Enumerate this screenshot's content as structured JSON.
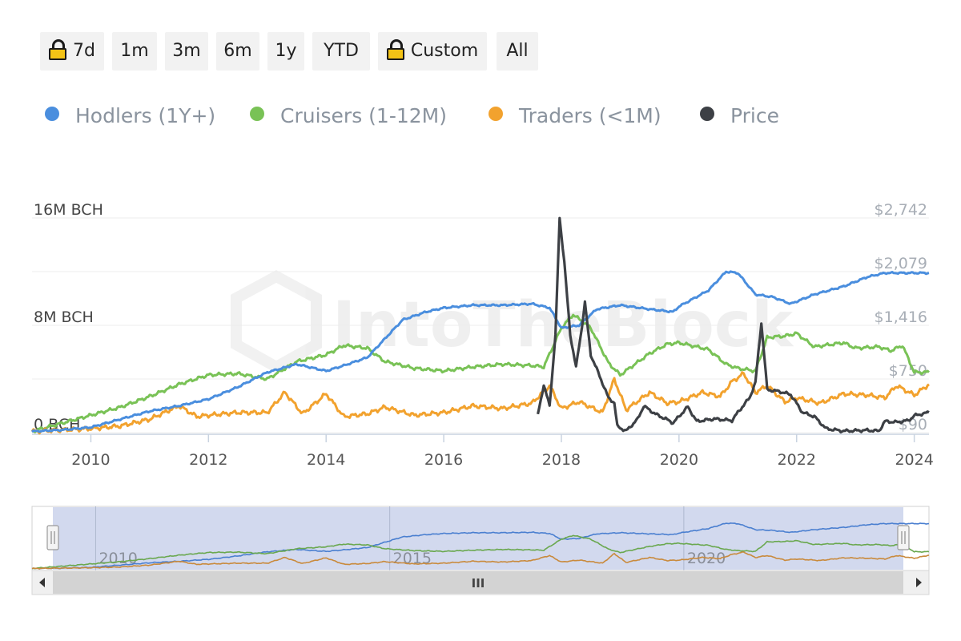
{
  "range_buttons": [
    {
      "label": "7d",
      "locked": true
    },
    {
      "label": "1m",
      "locked": false
    },
    {
      "label": "3m",
      "locked": false
    },
    {
      "label": "6m",
      "locked": false
    },
    {
      "label": "1y",
      "locked": false
    },
    {
      "label": "YTD",
      "locked": false
    },
    {
      "label": "Custom",
      "locked": true
    },
    {
      "label": "All",
      "locked": false
    }
  ],
  "legend": [
    {
      "label": "Hodlers (1Y+)",
      "color": "#4a8ede"
    },
    {
      "label": "Cruisers (1-12M)",
      "color": "#79c256"
    },
    {
      "label": "Traders (<1M)",
      "color": "#f2a22e"
    },
    {
      "label": "Price",
      "color": "#3d4045"
    }
  ],
  "watermark": "IntoTheBlock",
  "navigator": {
    "labels": [
      "2010",
      "2015",
      "2020"
    ],
    "scrollbar_grip": "III"
  },
  "chart_data": {
    "type": "line",
    "x_range": [
      2009.0,
      2024.25
    ],
    "x_ticks": [
      "2010",
      "2012",
      "2014",
      "2016",
      "2018",
      "2020",
      "2022",
      "2024"
    ],
    "y_left": {
      "ticks": [
        "0 BCH",
        "8M BCH",
        "16M BCH"
      ],
      "range_million": [
        0,
        16
      ]
    },
    "y_right": {
      "ticks": [
        "$90",
        "$750",
        "$1,416",
        "$2,079",
        "$2,742"
      ],
      "range": [
        90,
        2742
      ]
    },
    "grid": true,
    "legend_position": "top-left",
    "series": [
      {
        "name": "Hodlers (1Y+)",
        "axis": "left",
        "unit": "M BCH",
        "points": [
          [
            2009.0,
            0.1
          ],
          [
            2009.5,
            0.2
          ],
          [
            2010.0,
            0.4
          ],
          [
            2010.5,
            1.0
          ],
          [
            2011.0,
            1.6
          ],
          [
            2011.5,
            2.0
          ],
          [
            2012.0,
            2.5
          ],
          [
            2012.5,
            3.4
          ],
          [
            2013.0,
            4.5
          ],
          [
            2013.5,
            5.1
          ],
          [
            2014.0,
            4.6
          ],
          [
            2014.3,
            5.0
          ],
          [
            2014.7,
            5.6
          ],
          [
            2015.0,
            7.0
          ],
          [
            2015.3,
            8.4
          ],
          [
            2015.7,
            9.0
          ],
          [
            2016.0,
            9.3
          ],
          [
            2016.5,
            9.5
          ],
          [
            2017.0,
            9.5
          ],
          [
            2017.5,
            9.6
          ],
          [
            2017.8,
            9.3
          ],
          [
            2018.0,
            7.8
          ],
          [
            2018.3,
            8.0
          ],
          [
            2018.6,
            9.2
          ],
          [
            2019.0,
            9.5
          ],
          [
            2019.5,
            9.2
          ],
          [
            2019.9,
            9.0
          ],
          [
            2020.0,
            9.4
          ],
          [
            2020.5,
            10.6
          ],
          [
            2020.8,
            12.0
          ],
          [
            2021.0,
            11.9
          ],
          [
            2021.3,
            10.3
          ],
          [
            2021.6,
            10.1
          ],
          [
            2021.9,
            9.6
          ],
          [
            2022.3,
            10.3
          ],
          [
            2022.8,
            10.9
          ],
          [
            2023.2,
            11.6
          ],
          [
            2023.5,
            11.9
          ],
          [
            2023.8,
            11.9
          ],
          [
            2024.25,
            11.9
          ]
        ]
      },
      {
        "name": "Cruisers (1-12M)",
        "axis": "left",
        "unit": "M BCH",
        "points": [
          [
            2009.0,
            0.1
          ],
          [
            2009.5,
            0.7
          ],
          [
            2010.0,
            1.3
          ],
          [
            2010.5,
            1.9
          ],
          [
            2011.0,
            2.7
          ],
          [
            2011.5,
            3.6
          ],
          [
            2012.0,
            4.3
          ],
          [
            2012.5,
            4.4
          ],
          [
            2013.0,
            4.0
          ],
          [
            2013.5,
            5.3
          ],
          [
            2014.0,
            5.8
          ],
          [
            2014.3,
            6.5
          ],
          [
            2014.7,
            6.3
          ],
          [
            2015.0,
            5.3
          ],
          [
            2015.5,
            4.8
          ],
          [
            2016.0,
            4.6
          ],
          [
            2016.5,
            4.9
          ],
          [
            2017.0,
            5.1
          ],
          [
            2017.5,
            5.0
          ],
          [
            2017.7,
            4.9
          ],
          [
            2018.0,
            7.8
          ],
          [
            2018.2,
            8.8
          ],
          [
            2018.5,
            7.8
          ],
          [
            2018.8,
            5.2
          ],
          [
            2019.0,
            4.3
          ],
          [
            2019.5,
            5.9
          ],
          [
            2019.8,
            6.6
          ],
          [
            2020.0,
            6.7
          ],
          [
            2020.5,
            6.2
          ],
          [
            2020.8,
            5.1
          ],
          [
            2021.0,
            4.8
          ],
          [
            2021.3,
            4.6
          ],
          [
            2021.5,
            7.1
          ],
          [
            2021.8,
            7.2
          ],
          [
            2022.0,
            7.4
          ],
          [
            2022.3,
            6.4
          ],
          [
            2022.8,
            6.7
          ],
          [
            2023.0,
            6.3
          ],
          [
            2023.4,
            6.4
          ],
          [
            2023.6,
            6.1
          ],
          [
            2023.8,
            6.5
          ],
          [
            2024.0,
            4.5
          ],
          [
            2024.25,
            4.5
          ]
        ]
      },
      {
        "name": "Traders (<1M)",
        "axis": "left",
        "unit": "M BCH",
        "points": [
          [
            2009.0,
            0.1
          ],
          [
            2009.5,
            0.2
          ],
          [
            2010.0,
            0.3
          ],
          [
            2010.5,
            0.5
          ],
          [
            2011.0,
            1.0
          ],
          [
            2011.5,
            2.0
          ],
          [
            2011.8,
            1.2
          ],
          [
            2012.0,
            1.3
          ],
          [
            2012.5,
            1.5
          ],
          [
            2013.0,
            1.5
          ],
          [
            2013.3,
            3.0
          ],
          [
            2013.6,
            1.4
          ],
          [
            2014.0,
            2.9
          ],
          [
            2014.3,
            1.2
          ],
          [
            2014.7,
            1.4
          ],
          [
            2015.0,
            1.9
          ],
          [
            2015.5,
            1.3
          ],
          [
            2016.0,
            1.5
          ],
          [
            2016.5,
            2.0
          ],
          [
            2017.0,
            1.8
          ],
          [
            2017.5,
            2.2
          ],
          [
            2017.8,
            3.5
          ],
          [
            2018.0,
            1.8
          ],
          [
            2018.3,
            2.3
          ],
          [
            2018.7,
            1.5
          ],
          [
            2018.9,
            4.0
          ],
          [
            2019.1,
            1.7
          ],
          [
            2019.5,
            3.0
          ],
          [
            2019.8,
            2.2
          ],
          [
            2020.0,
            2.3
          ],
          [
            2020.4,
            3.0
          ],
          [
            2020.7,
            2.7
          ],
          [
            2020.9,
            3.8
          ],
          [
            2021.1,
            4.4
          ],
          [
            2021.3,
            3.0
          ],
          [
            2021.5,
            3.5
          ],
          [
            2021.8,
            2.3
          ],
          [
            2022.0,
            2.6
          ],
          [
            2022.4,
            2.2
          ],
          [
            2022.8,
            2.9
          ],
          [
            2023.2,
            2.8
          ],
          [
            2023.5,
            2.6
          ],
          [
            2023.7,
            3.5
          ],
          [
            2024.0,
            2.8
          ],
          [
            2024.25,
            3.6
          ]
        ]
      },
      {
        "name": "Price",
        "axis": "right",
        "unit": "USD",
        "points": [
          [
            2017.6,
            310
          ],
          [
            2017.7,
            680
          ],
          [
            2017.8,
            420
          ],
          [
            2017.9,
            1300
          ],
          [
            2017.97,
            2742
          ],
          [
            2018.05,
            2200
          ],
          [
            2018.15,
            1300
          ],
          [
            2018.25,
            900
          ],
          [
            2018.35,
            1400
          ],
          [
            2018.4,
            1700
          ],
          [
            2018.5,
            1050
          ],
          [
            2018.6,
            880
          ],
          [
            2018.7,
            700
          ],
          [
            2018.8,
            520
          ],
          [
            2018.9,
            460
          ],
          [
            2018.95,
            170
          ],
          [
            2019.1,
            110
          ],
          [
            2019.3,
            260
          ],
          [
            2019.4,
            420
          ],
          [
            2019.6,
            320
          ],
          [
            2019.8,
            250
          ],
          [
            2019.9,
            210
          ],
          [
            2020.0,
            290
          ],
          [
            2020.15,
            410
          ],
          [
            2020.3,
            230
          ],
          [
            2020.6,
            260
          ],
          [
            2020.9,
            240
          ],
          [
            2021.0,
            340
          ],
          [
            2021.2,
            520
          ],
          [
            2021.3,
            710
          ],
          [
            2021.4,
            1450
          ],
          [
            2021.5,
            620
          ],
          [
            2021.7,
            600
          ],
          [
            2021.9,
            560
          ],
          [
            2022.1,
            340
          ],
          [
            2022.3,
            290
          ],
          [
            2022.5,
            140
          ],
          [
            2022.8,
            110
          ],
          [
            2023.2,
            120
          ],
          [
            2023.4,
            110
          ],
          [
            2023.5,
            230
          ],
          [
            2023.7,
            220
          ],
          [
            2023.9,
            240
          ],
          [
            2024.0,
            300
          ],
          [
            2024.25,
            340
          ]
        ]
      }
    ]
  }
}
